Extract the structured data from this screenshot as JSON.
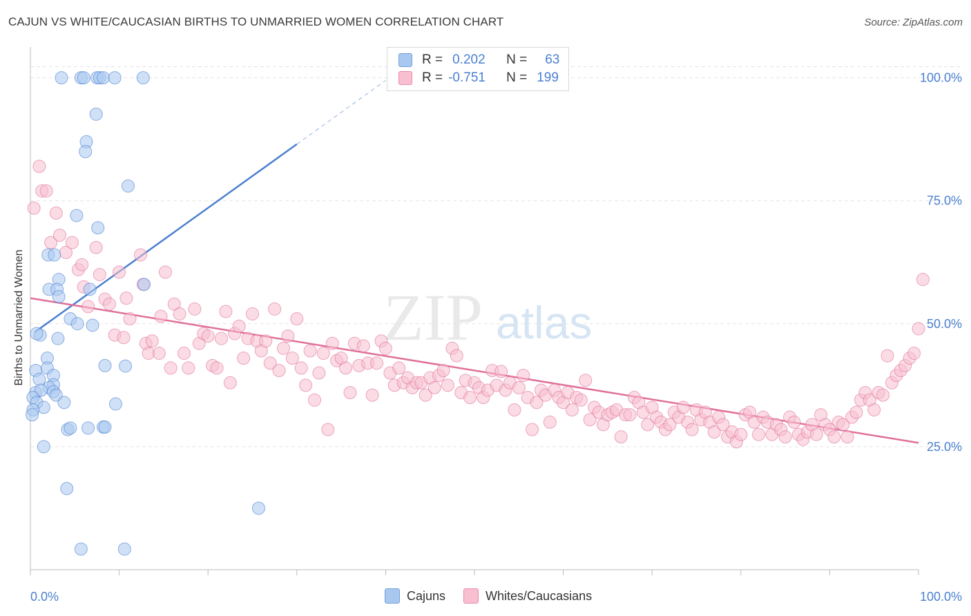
{
  "title": "CAJUN VS WHITE/CAUCASIAN BIRTHS TO UNMARRIED WOMEN CORRELATION CHART",
  "source": "Source: ZipAtlas.com",
  "watermark": {
    "zip": "ZIP",
    "atlas": "atlas"
  },
  "legend": {
    "rows": [
      {
        "r_label": "R =",
        "r_value": "0.202",
        "n_label": "N =",
        "n_value": "63",
        "color": "#a9c8f0",
        "border": "#6f9fdc"
      },
      {
        "r_label": "R =",
        "r_value": "-0.751",
        "n_label": "N =",
        "n_value": "199",
        "color": "#f8bfd0",
        "border": "#e88aaa"
      }
    ]
  },
  "bottom_legend": [
    {
      "label": "Cajuns",
      "color": "#a9c8f0",
      "border": "#6f9fdc"
    },
    {
      "label": "Whites/Caucasians",
      "color": "#f8bfd0",
      "border": "#e88aaa"
    }
  ],
  "chart_data": {
    "type": "scatter",
    "title": "CAJUN VS WHITE/CAUCASIAN BIRTHS TO UNMARRIED WOMEN CORRELATION CHART",
    "xlabel": "",
    "ylabel": "Births to Unmarried Women",
    "xlim": [
      0,
      100
    ],
    "ylim": [
      0,
      105
    ],
    "x_tick_labels": [
      "0.0%",
      "100.0%"
    ],
    "y_ticks": [
      25,
      50,
      75,
      100
    ],
    "y_tick_labels": [
      "25.0%",
      "50.0%",
      "75.0%",
      "100.0%"
    ],
    "grid": "horizontal dashed",
    "series": [
      {
        "name": "Cajuns",
        "color": "#4a7fd0",
        "fill": "#a9c8f0",
        "trend": {
          "x0": 0.5,
          "y0": 48.3,
          "x1": 30,
          "y1": 86.5,
          "dash_to_x": 40
        },
        "points": [
          [
            3.5,
            100
          ],
          [
            5.7,
            100
          ],
          [
            6,
            100
          ],
          [
            7.5,
            100
          ],
          [
            7.8,
            100
          ],
          [
            8.2,
            100
          ],
          [
            9.5,
            100
          ],
          [
            12.7,
            100
          ],
          [
            7.4,
            92.6
          ],
          [
            6.3,
            87
          ],
          [
            6.2,
            85
          ],
          [
            11,
            78
          ],
          [
            5.2,
            72
          ],
          [
            7.6,
            69.5
          ],
          [
            2,
            64
          ],
          [
            2.7,
            64
          ],
          [
            12.8,
            58
          ],
          [
            3.2,
            59
          ],
          [
            2.1,
            57
          ],
          [
            3,
            57
          ],
          [
            6.7,
            57
          ],
          [
            3.2,
            55.5
          ],
          [
            4.5,
            51
          ],
          [
            5.3,
            50
          ],
          [
            7,
            49.7
          ],
          [
            1.1,
            47.7
          ],
          [
            3.1,
            47
          ],
          [
            0.7,
            48
          ],
          [
            1.9,
            43
          ],
          [
            0.6,
            40.5
          ],
          [
            1.9,
            41
          ],
          [
            2.6,
            39.5
          ],
          [
            1,
            38.7
          ],
          [
            2.6,
            37.6
          ],
          [
            2.1,
            37
          ],
          [
            0.6,
            36
          ],
          [
            1.2,
            36.5
          ],
          [
            2.6,
            36.2
          ],
          [
            2.9,
            35.5
          ],
          [
            0.3,
            35
          ],
          [
            0.7,
            34
          ],
          [
            3.8,
            34
          ],
          [
            1.5,
            33
          ],
          [
            9.6,
            33.7
          ],
          [
            0.3,
            32.5
          ],
          [
            0.2,
            31.5
          ],
          [
            8.4,
            41.5
          ],
          [
            10.7,
            41.4
          ],
          [
            4.2,
            28.5
          ],
          [
            4.5,
            28.8
          ],
          [
            6.5,
            28.8
          ],
          [
            8.2,
            29
          ],
          [
            8.4,
            29
          ],
          [
            1.5,
            25
          ],
          [
            4.1,
            16.5
          ],
          [
            25.7,
            12.5
          ],
          [
            5.7,
            4.2
          ],
          [
            10.6,
            4.2
          ]
        ]
      },
      {
        "name": "Whites/Caucasians",
        "color": "#e0709a",
        "fill": "#f8bfd0",
        "trend": {
          "x0": 0,
          "y0": 55.2,
          "x1": 100,
          "y1": 25.8
        },
        "points": [
          [
            0.4,
            73.5
          ],
          [
            1,
            82
          ],
          [
            1.3,
            77
          ],
          [
            1.8,
            77
          ],
          [
            2.3,
            66.5
          ],
          [
            2.9,
            72.5
          ],
          [
            3.3,
            68
          ],
          [
            4,
            64.5
          ],
          [
            4.7,
            66.5
          ],
          [
            5.4,
            61
          ],
          [
            5.8,
            62
          ],
          [
            6,
            57.5
          ],
          [
            6.5,
            53.5
          ],
          [
            7.4,
            65.5
          ],
          [
            7.8,
            60
          ],
          [
            8.4,
            55
          ],
          [
            8.9,
            54
          ],
          [
            9.5,
            47.7
          ],
          [
            10,
            60.5
          ],
          [
            10.5,
            47.2
          ],
          [
            10.8,
            55.2
          ],
          [
            11.2,
            51
          ],
          [
            12.4,
            64
          ],
          [
            12.7,
            58
          ],
          [
            13,
            46
          ],
          [
            13.3,
            44
          ],
          [
            13.7,
            46.5
          ],
          [
            14.5,
            44
          ],
          [
            14.7,
            51.5
          ],
          [
            15.2,
            60.5
          ],
          [
            15.8,
            41
          ],
          [
            16.2,
            54
          ],
          [
            16.8,
            52
          ],
          [
            17.3,
            44
          ],
          [
            17.8,
            41
          ],
          [
            18.5,
            53
          ],
          [
            19,
            46
          ],
          [
            19.5,
            48
          ],
          [
            20,
            47.5
          ],
          [
            20.5,
            41.5
          ],
          [
            21,
            41
          ],
          [
            21.5,
            47
          ],
          [
            22,
            52.5
          ],
          [
            22.5,
            38
          ],
          [
            23,
            48
          ],
          [
            23.5,
            49.5
          ],
          [
            24,
            43
          ],
          [
            24.5,
            47
          ],
          [
            25,
            52
          ],
          [
            25.5,
            46.5
          ],
          [
            26,
            44.5
          ],
          [
            26.5,
            46.5
          ],
          [
            27,
            42
          ],
          [
            27.5,
            53
          ],
          [
            28,
            40.5
          ],
          [
            28.5,
            45
          ],
          [
            29,
            47.5
          ],
          [
            29.5,
            43
          ],
          [
            30,
            51
          ],
          [
            30.5,
            41
          ],
          [
            31,
            37.5
          ],
          [
            31.5,
            44.5
          ],
          [
            32,
            34.5
          ],
          [
            32.5,
            40
          ],
          [
            33,
            44
          ],
          [
            33.5,
            28.5
          ],
          [
            34,
            46
          ],
          [
            34.5,
            42.5
          ],
          [
            35,
            43
          ],
          [
            35.5,
            41
          ],
          [
            36,
            36
          ],
          [
            36.5,
            46
          ],
          [
            37,
            41.5
          ],
          [
            37.5,
            45.5
          ],
          [
            38,
            42
          ],
          [
            38.5,
            35.5
          ],
          [
            39,
            42
          ],
          [
            39.5,
            46.5
          ],
          [
            40,
            45
          ],
          [
            40.5,
            40
          ],
          [
            41,
            37.5
          ],
          [
            41.5,
            41
          ],
          [
            42,
            38
          ],
          [
            42.5,
            39
          ],
          [
            43,
            37
          ],
          [
            43.5,
            38
          ],
          [
            44,
            38
          ],
          [
            44.5,
            35.5
          ],
          [
            45,
            39
          ],
          [
            45.5,
            37
          ],
          [
            46,
            39.5
          ],
          [
            46.5,
            40.5
          ],
          [
            47,
            37.5
          ],
          [
            47.5,
            45
          ],
          [
            48,
            43.5
          ],
          [
            48.5,
            36
          ],
          [
            49,
            38.5
          ],
          [
            49.5,
            35
          ],
          [
            50,
            38
          ],
          [
            50.5,
            37
          ],
          [
            51,
            35
          ],
          [
            51.5,
            36.5
          ],
          [
            52,
            40.5
          ],
          [
            52.5,
            37.5
          ],
          [
            53,
            40.3
          ],
          [
            53.5,
            36.5
          ],
          [
            54,
            38
          ],
          [
            54.5,
            32.5
          ],
          [
            55,
            37
          ],
          [
            55.5,
            39.5
          ],
          [
            56,
            35
          ],
          [
            56.5,
            28.5
          ],
          [
            57,
            34
          ],
          [
            57.5,
            36.5
          ],
          [
            58,
            35.5
          ],
          [
            58.5,
            30
          ],
          [
            59,
            36.5
          ],
          [
            59.5,
            35
          ],
          [
            60,
            34
          ],
          [
            60.5,
            36
          ],
          [
            61,
            32.5
          ],
          [
            61.5,
            35
          ],
          [
            62,
            34.5
          ],
          [
            62.5,
            38.5
          ],
          [
            63,
            30.5
          ],
          [
            63.5,
            33
          ],
          [
            64,
            32
          ],
          [
            64.5,
            29.5
          ],
          [
            65,
            31.5
          ],
          [
            65.5,
            32
          ],
          [
            66,
            32.5
          ],
          [
            66.5,
            27
          ],
          [
            67,
            31.5
          ],
          [
            67.5,
            31.5
          ],
          [
            68,
            35
          ],
          [
            68.5,
            34
          ],
          [
            69,
            32
          ],
          [
            69.5,
            29.5
          ],
          [
            70,
            33
          ],
          [
            70.5,
            31
          ],
          [
            71,
            30
          ],
          [
            71.5,
            28.5
          ],
          [
            72,
            29.5
          ],
          [
            72.5,
            32
          ],
          [
            73,
            31
          ],
          [
            73.5,
            33
          ],
          [
            74,
            30
          ],
          [
            74.5,
            28.5
          ],
          [
            75,
            32.5
          ],
          [
            75.5,
            30.5
          ],
          [
            76,
            32
          ],
          [
            76.5,
            30
          ],
          [
            77,
            28
          ],
          [
            77.5,
            31
          ],
          [
            78,
            29.5
          ],
          [
            78.5,
            27
          ],
          [
            79,
            28
          ],
          [
            79.5,
            26
          ],
          [
            80,
            27.5
          ],
          [
            80.5,
            31.5
          ],
          [
            81,
            32
          ],
          [
            81.5,
            30
          ],
          [
            82,
            27.5
          ],
          [
            82.5,
            31
          ],
          [
            83,
            30
          ],
          [
            83.5,
            27.5
          ],
          [
            84,
            29.5
          ],
          [
            84.5,
            28.5
          ],
          [
            85,
            27
          ],
          [
            85.5,
            31
          ],
          [
            86,
            30
          ],
          [
            86.5,
            27.5
          ],
          [
            87,
            26.5
          ],
          [
            87.5,
            28
          ],
          [
            88,
            29.5
          ],
          [
            88.5,
            27.5
          ],
          [
            89,
            31.5
          ],
          [
            89.5,
            29.5
          ],
          [
            90,
            28.5
          ],
          [
            90.5,
            27
          ],
          [
            91,
            30
          ],
          [
            91.5,
            29.5
          ],
          [
            92,
            27
          ],
          [
            92.5,
            31
          ],
          [
            93,
            32
          ],
          [
            93.5,
            34.5
          ],
          [
            94,
            36
          ],
          [
            94.5,
            34.5
          ],
          [
            95,
            32.5
          ],
          [
            95.5,
            36
          ],
          [
            96,
            35.5
          ],
          [
            96.5,
            43.5
          ],
          [
            97,
            38
          ],
          [
            97.5,
            39.5
          ],
          [
            98,
            40.5
          ],
          [
            98.5,
            41.5
          ],
          [
            99,
            43
          ],
          [
            99.5,
            44
          ],
          [
            100,
            49
          ],
          [
            100.5,
            59
          ]
        ]
      }
    ]
  }
}
